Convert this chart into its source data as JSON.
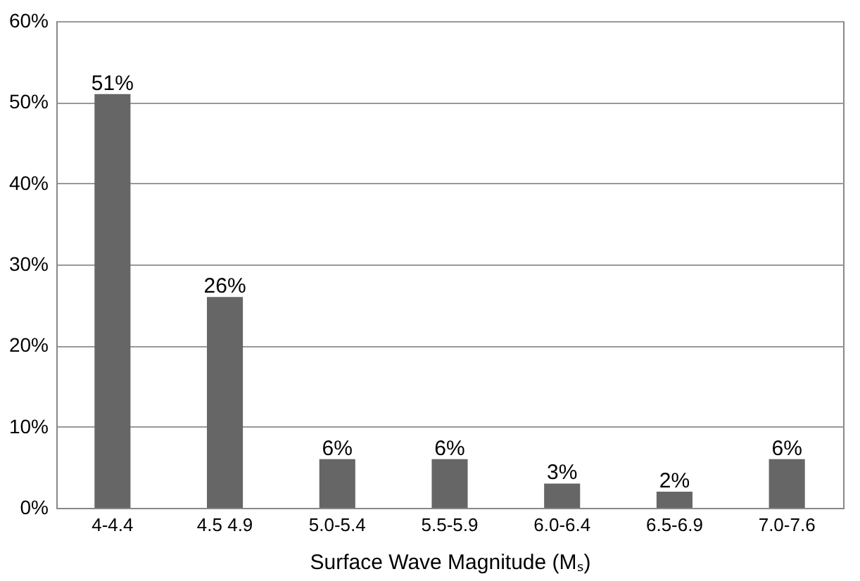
{
  "chart_data": {
    "type": "bar",
    "xlabel": "Surface Wave Magnitude (Mₛ)",
    "categories": [
      "4-4.4",
      "4.5 4.9",
      "5.0-5.4",
      "5.5-5.9",
      "6.0-6.4",
      "6.5-6.9",
      "7.0-7.6"
    ],
    "values": [
      51,
      26,
      6,
      6,
      3,
      2,
      6
    ],
    "color": "#666666",
    "ylim": [
      0,
      60
    ],
    "yticks": [
      {
        "value": 0,
        "label": "0%"
      },
      {
        "value": 10,
        "label": "10%"
      },
      {
        "value": 20,
        "label": "20%"
      },
      {
        "value": 30,
        "label": "30%"
      },
      {
        "value": 40,
        "label": "40%"
      },
      {
        "value": 50,
        "label": "50%"
      },
      {
        "value": 60,
        "label": "60%"
      }
    ],
    "value_labels": [
      "51%",
      "26%",
      "6%",
      "6%",
      "3%",
      "2%",
      "6%"
    ],
    "grid": "y"
  }
}
